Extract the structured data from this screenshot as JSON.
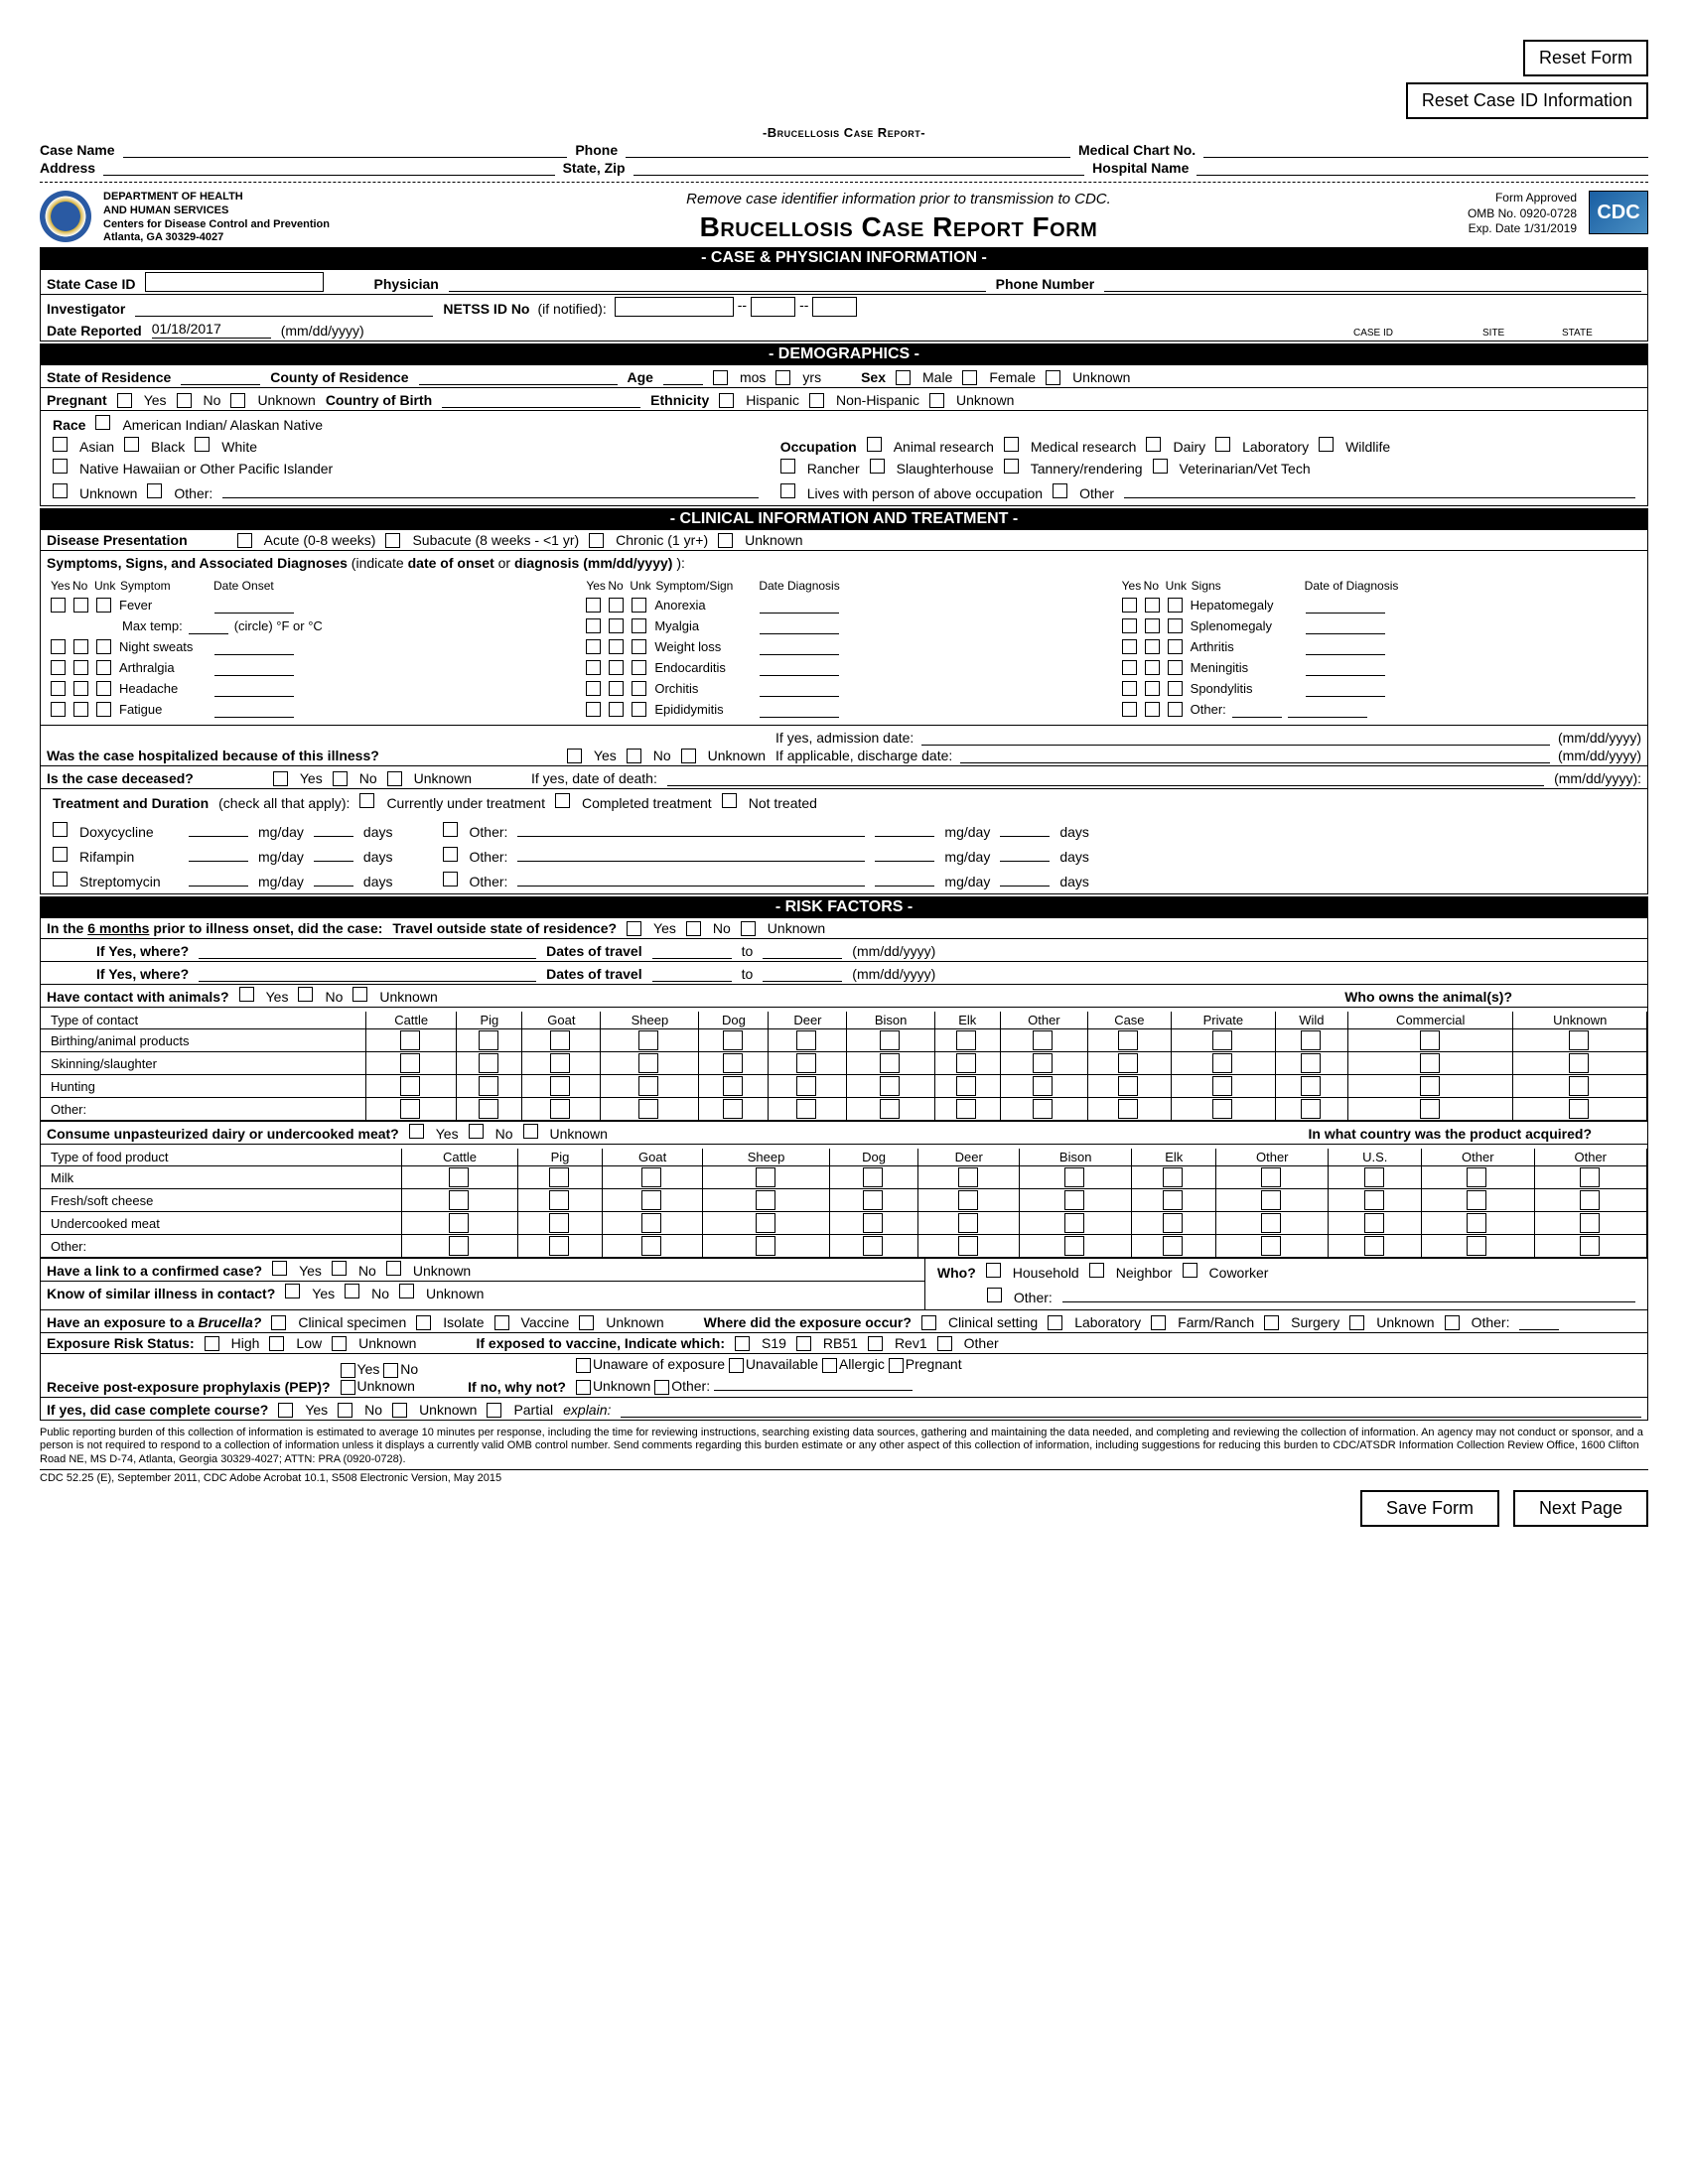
{
  "buttons": {
    "reset_form": "Reset Form",
    "reset_case_id": "Reset Case ID Information",
    "save_form": "Save Form",
    "next_page": "Next Page"
  },
  "small_title": "-Brucellosis Case Report-",
  "id_fields": {
    "case_name": "Case Name",
    "phone": "Phone",
    "med_chart": "Medical Chart No.",
    "address": "Address",
    "state_zip": "State, Zip",
    "hospital": "Hospital Name"
  },
  "dept": {
    "l1": "DEPARTMENT OF HEALTH",
    "l2": "AND HUMAN SERVICES",
    "l3": "Centers for Disease Control and Prevention",
    "l4": "Atlanta, GA 30329-4027"
  },
  "title_area": {
    "italic": "Remove case identifier information prior to transmission to CDC.",
    "main": "Brucellosis Case Report Form"
  },
  "omb": {
    "approved": "Form Approved",
    "no": "OMB No. 0920-0728",
    "exp": "Exp. Date 1/31/2019"
  },
  "cdc": "CDC",
  "sections": {
    "s1": "- CASE & PHYSICIAN INFORMATION -",
    "s2": "- DEMOGRAPHICS -",
    "s3": "- CLINICAL INFORMATION AND TREATMENT -",
    "s4": "- RISK FACTORS -"
  },
  "case_phys": {
    "state_case_id": "State Case ID",
    "physician": "Physician",
    "phone_num": "Phone Number",
    "investigator": "Investigator",
    "date_reported": "Date Reported",
    "date_reported_val": "01/18/2017",
    "mmddyyyy": "(mm/dd/yyyy)",
    "netss": "NETSS ID No",
    "if_notified": "(if notified):",
    "case_id": "CASE ID",
    "site": "SITE",
    "state": "STATE"
  },
  "demo": {
    "state_res": "State of Residence",
    "county_res": "County of Residence",
    "age": "Age",
    "mos": "mos",
    "yrs": "yrs",
    "sex": "Sex",
    "male": "Male",
    "female": "Female",
    "unknown": "Unknown",
    "pregnant": "Pregnant",
    "yes": "Yes",
    "no": "No",
    "cob": "Country of Birth",
    "ethnicity": "Ethnicity",
    "hisp": "Hispanic",
    "nonhisp": "Non-Hispanic",
    "race": "Race",
    "r1": "American Indian/ Alaskan Native",
    "r2": "Asian",
    "r3": "Black",
    "r4": "White",
    "r5": "Native Hawaiian or Other Pacific Islander",
    "r6": "Unknown",
    "r7": "Other:",
    "occ": "Occupation",
    "o1": "Animal research",
    "o2": "Medical research",
    "o3": "Dairy",
    "o4": "Laboratory",
    "o5": "Wildlife",
    "o6": "Rancher",
    "o7": "Slaughterhouse",
    "o8": "Tannery/rendering",
    "o9": "Veterinarian/Vet Tech",
    "o10": "Lives with person of above occupation",
    "o11": "Other"
  },
  "clinical": {
    "disease_pres": "Disease Presentation",
    "acute": "Acute (0-8 weeks)",
    "subacute": "Subacute (8 weeks - <1 yr)",
    "chronic": "Chronic (1 yr+)",
    "unk": "Unknown",
    "sym_hdr": "Symptoms, Signs, and Associated Diagnoses",
    "sym_sub": "(indicate date of onset or diagnosis  (mm/dd/yyyy) )",
    "yes": "Yes",
    "no": "No",
    "unk_s": "Unk",
    "symptom": "Symptom",
    "date_onset": "Date Onset",
    "symptom_sign": "Symptom/Sign",
    "date_diag": "Date Diagnosis",
    "signs": "Signs",
    "date_of_diag": "Date of Diagnosis",
    "fever": "Fever",
    "maxtemp": "Max temp:",
    "circle": "(circle) °F or °C",
    "night": "Night sweats",
    "arth": "Arthralgia",
    "head": "Headache",
    "fat": "Fatigue",
    "anor": "Anorexia",
    "myal": "Myalgia",
    "wl": "Weight loss",
    "endo": "Endocarditis",
    "orch": "Orchitis",
    "epid": "Epididymitis",
    "hepa": "Hepatomegaly",
    "splen": "Splenomegaly",
    "arthritis": "Arthritis",
    "mening": "Meningitis",
    "spond": "Spondylitis",
    "other": "Other:",
    "hosp": "Was the case hospitalized because of this illness?",
    "admit": "If yes, admission date:",
    "disch": "If applicable, discharge date:",
    "mmdd": "(mm/dd/yyyy)",
    "deceased": "Is the case deceased?",
    "death": "If yes, date of death:",
    "mmdd2": "(mm/dd/yyyy):",
    "treat": "Treatment and Duration",
    "treat_sub": "(check all that apply):",
    "curr": "Currently under treatment",
    "comp": "Completed treatment",
    "nottr": "Not treated",
    "doxy": "Doxycycline",
    "rif": "Rifampin",
    "strep": "Streptomycin",
    "Other": "Other:",
    "mgday": "mg/day",
    "days": "days"
  },
  "risk": {
    "prior": "In the 6 months prior to illness onset, did the case:",
    "travel": "Travel outside state of residence?",
    "yes": "Yes",
    "no": "No",
    "unk": "Unknown",
    "ifyes": "If Yes, where?",
    "dot": "Dates of travel",
    "to": "to",
    "mmdd": "(mm/dd/yyyy)",
    "animals": "Have contact with animals?",
    "whoowns": "Who owns the animal(s)?",
    "type_contact": "Type of contact",
    "cols": [
      "Cattle",
      "Pig",
      "Goat",
      "Sheep",
      "Dog",
      "Deer",
      "Bison",
      "Elk",
      "Other"
    ],
    "own_cols": [
      "Case",
      "Private",
      "Wild",
      "Commercial",
      "Unknown"
    ],
    "rows_a": [
      "Birthing/animal products",
      "Skinning/slaughter",
      "Hunting",
      "Other:"
    ],
    "dairy": "Consume unpasteurized dairy or undercooked meat?",
    "country": "In what country was the product acquired?",
    "food_type": "Type of food product",
    "food_cols": [
      "U.S.",
      "Other",
      "Other"
    ],
    "rows_f": [
      "Milk",
      "Fresh/soft cheese",
      "Undercooked meat",
      "Other:"
    ],
    "link": "Have a link to a confirmed case?",
    "who": "Who?",
    "household": "Household",
    "neighbor": "Neighbor",
    "coworker": "Coworker",
    "other": "Other:",
    "similar": "Know of similar illness in contact?",
    "exposure": "Have an exposure to a",
    "brucella": "Brucella?",
    "clin_spec": "Clinical specimen",
    "isolate": "Isolate",
    "vaccine": "Vaccine",
    "unk2": "Unknown",
    "where": "Where did the exposure occur?",
    "clin_set": "Clinical setting",
    "lab": "Laboratory",
    "farm": "Farm/Ranch",
    "surg": "Surgery",
    "oth": "Other:",
    "ers": "Exposure Risk Status:",
    "high": "High",
    "low": "Low",
    "vac_which": "If exposed to vaccine, Indicate which:",
    "s19": "S19",
    "rb51": "RB51",
    "rev1": "Rev1",
    "oth2": "Other",
    "pep": "Receive post-exposure prophylaxis (PEP)?",
    "ifnowhy": "If no, why not?",
    "unaware": "Unaware of exposure",
    "unavail": "Unavailable",
    "allergic": "Allergic",
    "pregnant": "Pregnant",
    "complete": "If yes, did case complete course?",
    "partial": "Partial",
    "explain": "explain:"
  },
  "disclaimer": "Public reporting burden of this collection of information is estimated to average 10 minutes per response, including the time for reviewing instructions, searching existing data sources, gathering and maintaining the data needed, and completing and reviewing the collection of information. An agency may not conduct or sponsor, and a person is not required to respond to a collection of information unless it displays a currently valid OMB control number. Send comments regarding this burden estimate or any other aspect of this collection of information, including suggestions for reducing this burden to CDC/ATSDR Information Collection Review Office, 1600 Clifton Road NE, MS D-74, Atlanta, Georgia 30329-4027; ATTN: PRA (0920-0728).",
  "footer_id": "CDC 52.25 (E), September 2011, CDC Adobe Acrobat 10.1, S508 Electronic Version, May 2015"
}
